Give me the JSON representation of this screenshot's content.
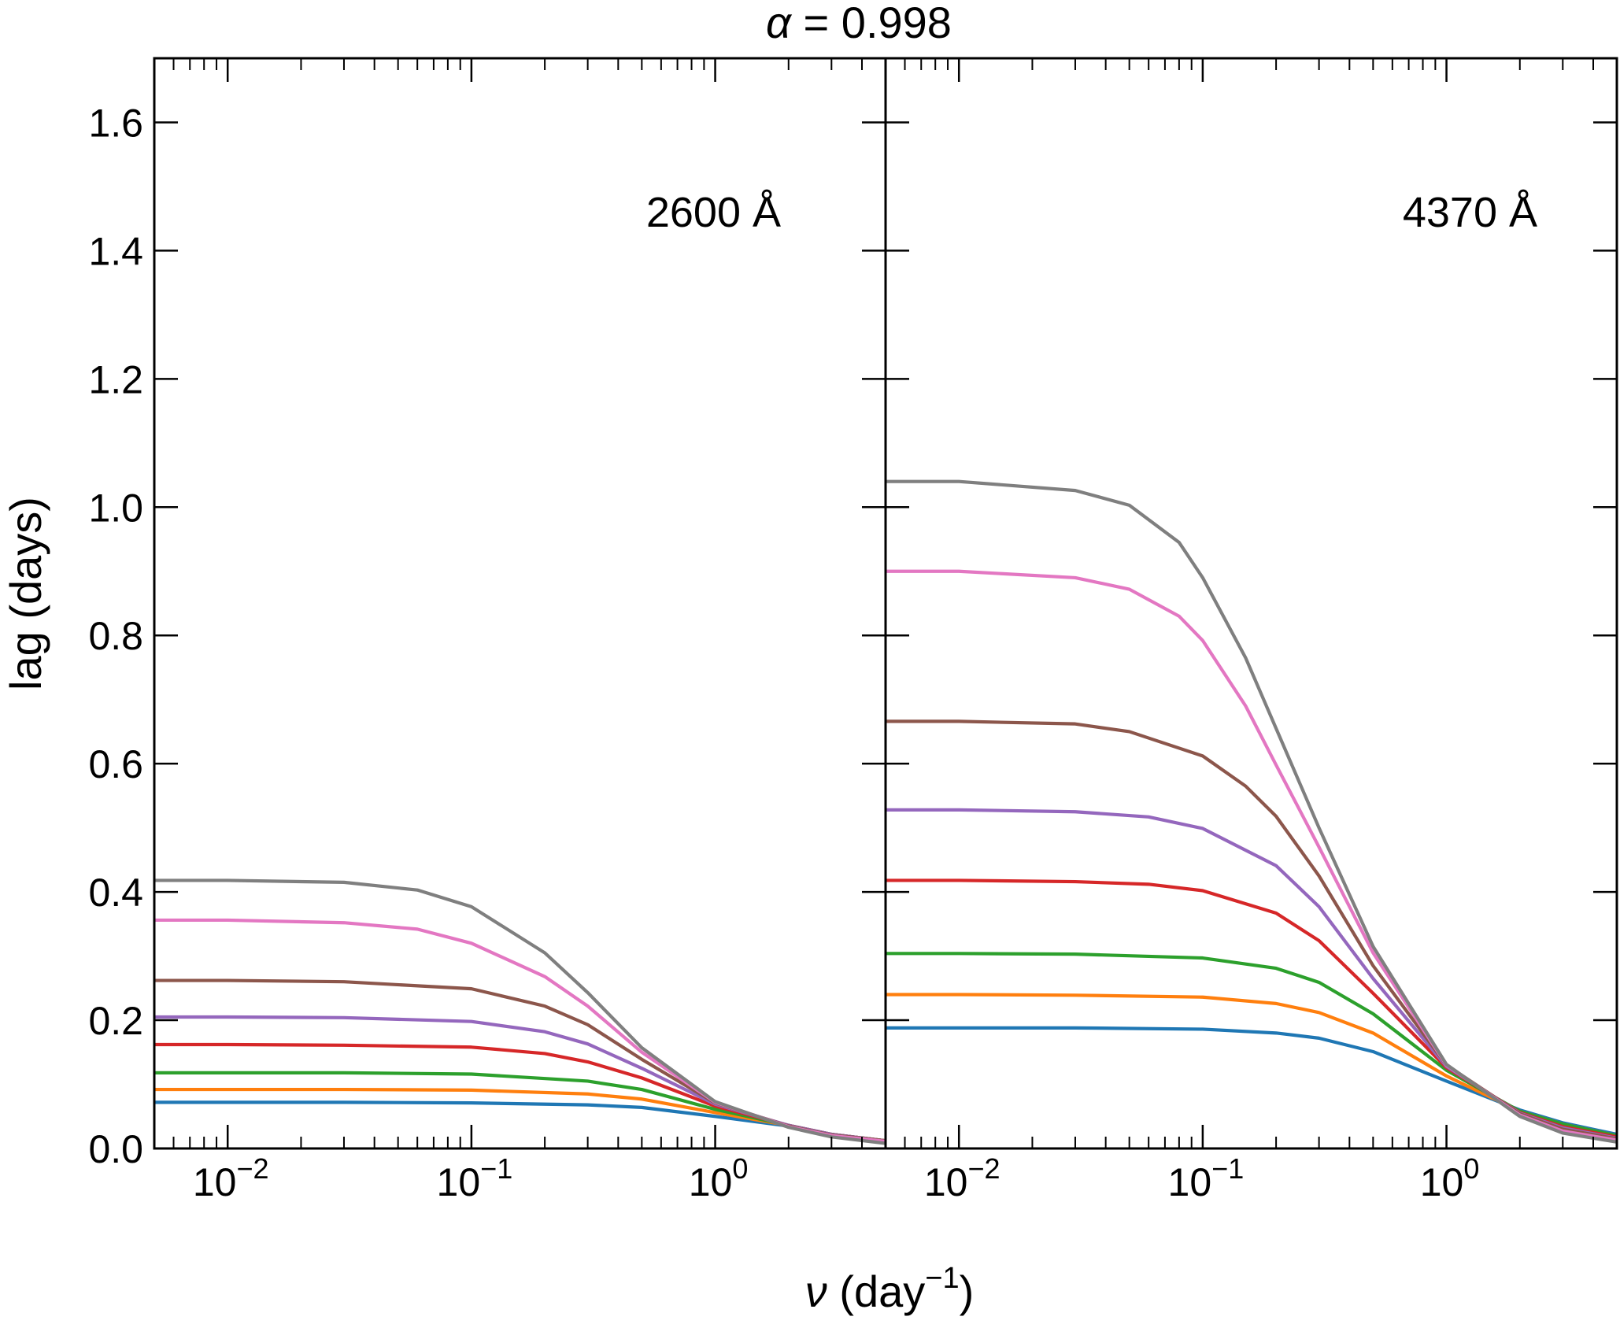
{
  "chart_data": {
    "type": "line",
    "title_symbol": "α",
    "title_text": " = 0.998",
    "title": "α = 0.998",
    "xlabel_symbol": "ν",
    "xlabel_text": " (day",
    "xlabel_exp": "−1",
    "xlabel_close": ")",
    "xlabel": "ν (day⁻¹)",
    "ylabel": "lag (days)",
    "xscale": "log",
    "xlim": [
      0.005,
      5.0
    ],
    "ylim": [
      0.0,
      1.7
    ],
    "y_ticks": [
      0.0,
      0.2,
      0.4,
      0.6,
      0.8,
      1.0,
      1.2,
      1.4,
      1.6
    ],
    "y_tick_labels": [
      "0.0",
      "0.2",
      "0.4",
      "0.6",
      "0.8",
      "1.0",
      "1.2",
      "1.4",
      "1.6"
    ],
    "x_tick_base": "10",
    "x_tick_exponents": [
      "−2",
      "−1",
      "0"
    ],
    "x_tick_values": [
      0.01,
      0.1,
      1.0
    ],
    "series_colors": [
      "#1f77b4",
      "#ff7f0e",
      "#2ca02c",
      "#d62728",
      "#9467bd",
      "#8c564b",
      "#e377c2",
      "#7f7f7f"
    ],
    "panels": [
      {
        "label": "2600 Å",
        "series": [
          {
            "color": "#1f77b4",
            "x": [
              0.005,
              0.01,
              0.03,
              0.1,
              0.3,
              0.5,
              1.0,
              2.0,
              3.0,
              5.0
            ],
            "y": [
              0.072,
              0.072,
              0.072,
              0.071,
              0.068,
              0.064,
              0.05,
              0.035,
              0.022,
              0.012
            ]
          },
          {
            "color": "#ff7f0e",
            "x": [
              0.005,
              0.01,
              0.03,
              0.1,
              0.3,
              0.5,
              1.0,
              2.0,
              3.0,
              5.0
            ],
            "y": [
              0.092,
              0.092,
              0.092,
              0.091,
              0.085,
              0.077,
              0.056,
              0.036,
              0.022,
              0.012
            ]
          },
          {
            "color": "#2ca02c",
            "x": [
              0.005,
              0.01,
              0.03,
              0.1,
              0.3,
              0.5,
              1.0,
              2.0,
              3.0,
              5.0
            ],
            "y": [
              0.118,
              0.118,
              0.118,
              0.116,
              0.105,
              0.092,
              0.061,
              0.036,
              0.022,
              0.012
            ]
          },
          {
            "color": "#d62728",
            "x": [
              0.005,
              0.01,
              0.03,
              0.1,
              0.2,
              0.3,
              0.5,
              1.0,
              2.0,
              3.0,
              5.0
            ],
            "y": [
              0.162,
              0.162,
              0.161,
              0.158,
              0.148,
              0.135,
              0.11,
              0.066,
              0.036,
              0.022,
              0.012
            ]
          },
          {
            "color": "#9467bd",
            "x": [
              0.005,
              0.01,
              0.03,
              0.1,
              0.2,
              0.3,
              0.5,
              1.0,
              2.0,
              3.0,
              5.0
            ],
            "y": [
              0.205,
              0.205,
              0.204,
              0.198,
              0.182,
              0.163,
              0.125,
              0.069,
              0.036,
              0.022,
              0.012
            ]
          },
          {
            "color": "#8c564b",
            "x": [
              0.005,
              0.01,
              0.03,
              0.1,
              0.2,
              0.3,
              0.5,
              1.0,
              2.0,
              3.0,
              5.0
            ],
            "y": [
              0.262,
              0.262,
              0.26,
              0.249,
              0.222,
              0.193,
              0.139,
              0.071,
              0.035,
              0.021,
              0.012
            ]
          },
          {
            "color": "#e377c2",
            "x": [
              0.005,
              0.01,
              0.03,
              0.06,
              0.1,
              0.2,
              0.3,
              0.5,
              1.0,
              2.0,
              3.0,
              5.0
            ],
            "y": [
              0.356,
              0.356,
              0.352,
              0.342,
              0.32,
              0.268,
              0.222,
              0.15,
              0.072,
              0.034,
              0.02,
              0.011
            ]
          },
          {
            "color": "#7f7f7f",
            "x": [
              0.005,
              0.01,
              0.03,
              0.06,
              0.1,
              0.2,
              0.3,
              0.5,
              1.0,
              2.0,
              3.0,
              5.0
            ],
            "y": [
              0.418,
              0.418,
              0.415,
              0.403,
              0.377,
              0.305,
              0.243,
              0.157,
              0.073,
              0.033,
              0.018,
              0.008
            ]
          }
        ]
      },
      {
        "label": "4370 Å",
        "series": [
          {
            "color": "#1f77b4",
            "x": [
              0.005,
              0.01,
              0.03,
              0.1,
              0.2,
              0.3,
              0.5,
              1.0,
              2.0,
              3.0,
              5.0
            ],
            "y": [
              0.188,
              0.188,
              0.188,
              0.186,
              0.18,
              0.172,
              0.151,
              0.105,
              0.06,
              0.04,
              0.022
            ]
          },
          {
            "color": "#ff7f0e",
            "x": [
              0.005,
              0.01,
              0.03,
              0.1,
              0.2,
              0.3,
              0.5,
              1.0,
              2.0,
              3.0,
              5.0
            ],
            "y": [
              0.24,
              0.24,
              0.239,
              0.236,
              0.226,
              0.212,
              0.18,
              0.113,
              0.058,
              0.038,
              0.02
            ]
          },
          {
            "color": "#2ca02c",
            "x": [
              0.005,
              0.01,
              0.03,
              0.1,
              0.2,
              0.3,
              0.5,
              1.0,
              2.0,
              3.0,
              5.0
            ],
            "y": [
              0.304,
              0.304,
              0.303,
              0.297,
              0.281,
              0.259,
              0.21,
              0.122,
              0.058,
              0.038,
              0.02
            ]
          },
          {
            "color": "#d62728",
            "x": [
              0.005,
              0.01,
              0.03,
              0.06,
              0.1,
              0.2,
              0.3,
              0.5,
              1.0,
              2.0,
              3.0,
              5.0
            ],
            "y": [
              0.418,
              0.418,
              0.416,
              0.412,
              0.402,
              0.367,
              0.324,
              0.242,
              0.126,
              0.056,
              0.034,
              0.018
            ]
          },
          {
            "color": "#9467bd",
            "x": [
              0.005,
              0.01,
              0.03,
              0.06,
              0.1,
              0.2,
              0.3,
              0.5,
              1.0,
              2.0,
              3.0,
              5.0
            ],
            "y": [
              0.528,
              0.528,
              0.525,
              0.517,
              0.499,
              0.441,
              0.377,
              0.265,
              0.128,
              0.055,
              0.032,
              0.016
            ]
          },
          {
            "color": "#8c564b",
            "x": [
              0.005,
              0.01,
              0.03,
              0.05,
              0.1,
              0.15,
              0.2,
              0.3,
              0.5,
              1.0,
              2.0,
              3.0,
              5.0
            ],
            "y": [
              0.666,
              0.666,
              0.662,
              0.65,
              0.612,
              0.565,
              0.518,
              0.425,
              0.285,
              0.13,
              0.054,
              0.03,
              0.015
            ]
          },
          {
            "color": "#e377c2",
            "x": [
              0.005,
              0.01,
              0.03,
              0.05,
              0.08,
              0.1,
              0.15,
              0.2,
              0.3,
              0.5,
              1.0,
              2.0,
              3.0,
              5.0
            ],
            "y": [
              0.9,
              0.9,
              0.89,
              0.872,
              0.83,
              0.792,
              0.69,
              0.598,
              0.47,
              0.305,
              0.13,
              0.052,
              0.027,
              0.013
            ]
          },
          {
            "color": "#7f7f7f",
            "x": [
              0.005,
              0.01,
              0.03,
              0.05,
              0.08,
              0.1,
              0.15,
              0.2,
              0.3,
              0.5,
              1.0,
              2.0,
              3.0,
              5.0
            ],
            "y": [
              1.04,
              1.04,
              1.026,
              1.003,
              0.945,
              0.89,
              0.765,
              0.655,
              0.5,
              0.315,
              0.131,
              0.05,
              0.024,
              0.01
            ]
          }
        ]
      }
    ]
  }
}
